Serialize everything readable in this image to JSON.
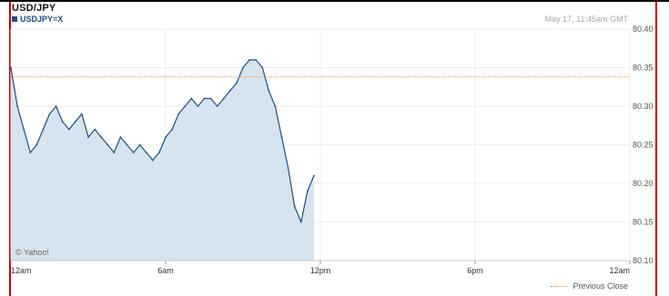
{
  "header": {
    "title": "USD/JPY",
    "symbol": "USDJPY=X",
    "timestamp": "May 17, 11:45am GMT",
    "watermark": "© Yahoo!"
  },
  "footer": {
    "previous_close_label": "Previous Close"
  },
  "colors": {
    "line": "#1f4e84",
    "area": "#d6e4f0",
    "grid": "#ececec",
    "previous_close": "#f08a3c",
    "frame": "#d10000"
  },
  "chart_data": {
    "type": "area",
    "x_unit": "hours",
    "xlim": [
      0,
      24
    ],
    "ylim": [
      80.1,
      80.4
    ],
    "x_ticks": [
      {
        "value": 0,
        "label": "12am"
      },
      {
        "value": 6,
        "label": "6am"
      },
      {
        "value": 12,
        "label": "12pm"
      },
      {
        "value": 18,
        "label": "6pm"
      },
      {
        "value": 24,
        "label": "12am"
      }
    ],
    "y_ticks": [
      "80.10",
      "80.15",
      "80.20",
      "80.25",
      "80.30",
      "80.35",
      "80.40"
    ],
    "previous_close": 80.338,
    "grid": true,
    "series": [
      {
        "x": [
          0,
          0.25,
          0.5,
          0.75,
          1,
          1.25,
          1.5,
          1.75,
          2,
          2.25,
          2.5,
          2.75,
          3,
          3.25,
          3.5,
          3.75,
          4,
          4.25,
          4.5,
          4.75,
          5,
          5.25,
          5.5,
          5.75,
          6,
          6.25,
          6.5,
          6.75,
          7,
          7.25,
          7.5,
          7.75,
          8,
          8.25,
          8.5,
          8.75,
          9,
          9.25,
          9.5,
          9.75,
          10,
          10.25,
          10.5,
          10.75,
          11,
          11.25,
          11.5,
          11.75
        ],
        "y": [
          80.35,
          80.3,
          80.27,
          80.24,
          80.25,
          80.27,
          80.29,
          80.3,
          80.28,
          80.27,
          80.28,
          80.29,
          80.26,
          80.27,
          80.26,
          80.25,
          80.24,
          80.26,
          80.25,
          80.24,
          80.25,
          80.24,
          80.23,
          80.24,
          80.26,
          80.27,
          80.29,
          80.3,
          80.31,
          80.3,
          80.31,
          80.31,
          80.3,
          80.31,
          80.32,
          80.33,
          80.35,
          80.36,
          80.36,
          80.35,
          80.32,
          80.3,
          80.26,
          80.22,
          80.17,
          80.15,
          80.19,
          80.21
        ]
      }
    ]
  }
}
